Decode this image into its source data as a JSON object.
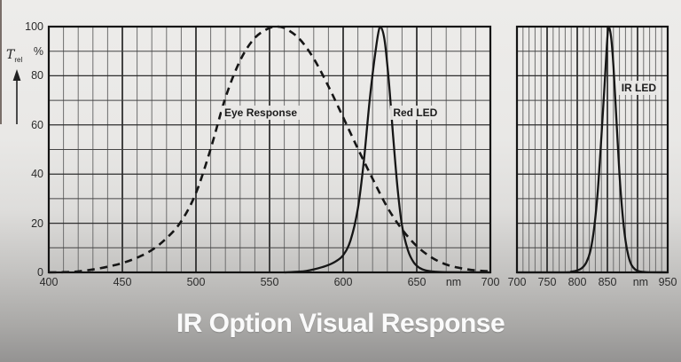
{
  "page": {
    "title": "IR Option Visual Response"
  },
  "axis": {
    "y_symbol": "T",
    "y_symbol_sub": "rel",
    "y_unit": "%",
    "x_unit": "nm"
  },
  "chart_data": [
    {
      "type": "line",
      "name": "visible-spectrum-panel",
      "xlabel": "nm",
      "ylabel": "T rel (%)",
      "xlim": [
        400,
        700
      ],
      "ylim": [
        0,
        100
      ],
      "x_minor_step": 10,
      "x_major_step": 50,
      "y_minor_step": 10,
      "y_major_step": 20,
      "grid": true,
      "x_tick_labels": [
        {
          "x": 400,
          "label": "400"
        },
        {
          "x": 450,
          "label": "450"
        },
        {
          "x": 500,
          "label": "500"
        },
        {
          "x": 550,
          "label": "550"
        },
        {
          "x": 600,
          "label": "600"
        },
        {
          "x": 650,
          "label": "650"
        },
        {
          "x": 675,
          "label": "nm"
        },
        {
          "x": 700,
          "label": "700"
        }
      ],
      "y_tick_labels": [
        {
          "v": 100,
          "label": "100"
        },
        {
          "v": 90,
          "label": "%"
        },
        {
          "v": 80,
          "label": "80"
        },
        {
          "v": 60,
          "label": "60"
        },
        {
          "v": 40,
          "label": "40"
        },
        {
          "v": 20,
          "label": "20"
        },
        {
          "v": 0,
          "label": "0"
        }
      ],
      "annotations": [
        {
          "label": "Eye Response",
          "x": 544,
          "y": 65
        },
        {
          "label": "Red LED",
          "x": 649,
          "y": 65
        }
      ],
      "series": [
        {
          "name": "Eye Response",
          "style": "dashed",
          "points": [
            [
              400,
              0
            ],
            [
              410,
              0.1
            ],
            [
              415,
              0.2
            ],
            [
              420,
              0.4
            ],
            [
              430,
              1.2
            ],
            [
              440,
              2.3
            ],
            [
              450,
              3.8
            ],
            [
              460,
              6
            ],
            [
              470,
              9.1
            ],
            [
              480,
              13.9
            ],
            [
              490,
              20.8
            ],
            [
              500,
              32.3
            ],
            [
              510,
              50.3
            ],
            [
              520,
              71
            ],
            [
              530,
              86.2
            ],
            [
              540,
              95.4
            ],
            [
              550,
              99.5
            ],
            [
              555,
              100
            ],
            [
              560,
              99.5
            ],
            [
              570,
              95.2
            ],
            [
              580,
              87
            ],
            [
              590,
              75.7
            ],
            [
              600,
              63.1
            ],
            [
              610,
              50.3
            ],
            [
              620,
              38.1
            ],
            [
              630,
              26.5
            ],
            [
              640,
              17.5
            ],
            [
              650,
              10.7
            ],
            [
              660,
              6.1
            ],
            [
              670,
              3.2
            ],
            [
              680,
              1.7
            ],
            [
              690,
              0.8
            ],
            [
              700,
              0.4
            ]
          ]
        },
        {
          "name": "Red LED",
          "style": "solid",
          "points": [
            [
              560,
              0
            ],
            [
              570,
              0.3
            ],
            [
              575,
              0.6
            ],
            [
              580,
              1.2
            ],
            [
              585,
              2
            ],
            [
              590,
              3
            ],
            [
              595,
              4.5
            ],
            [
              600,
              7
            ],
            [
              605,
              13
            ],
            [
              610,
              26
            ],
            [
              614,
              45
            ],
            [
              618,
              70
            ],
            [
              622,
              90
            ],
            [
              625,
              100
            ],
            [
              628,
              95
            ],
            [
              631,
              78
            ],
            [
              634,
              55
            ],
            [
              637,
              34
            ],
            [
              640,
              19
            ],
            [
              644,
              9
            ],
            [
              648,
              4
            ],
            [
              652,
              1.8
            ],
            [
              656,
              0.8
            ],
            [
              662,
              0.3
            ],
            [
              670,
              0.1
            ],
            [
              700,
              0
            ]
          ]
        }
      ]
    },
    {
      "type": "line",
      "name": "ir-spectrum-panel",
      "xlabel": "nm",
      "ylabel": "T rel (%)",
      "xlim": [
        700,
        950
      ],
      "ylim": [
        0,
        100
      ],
      "x_minor_step": 10,
      "x_major_step": 50,
      "y_minor_step": 10,
      "y_major_step": 20,
      "grid": true,
      "x_tick_labels": [
        {
          "x": 700,
          "label": "700"
        },
        {
          "x": 750,
          "label": "750"
        },
        {
          "x": 800,
          "label": "800"
        },
        {
          "x": 850,
          "label": "850"
        },
        {
          "x": 905,
          "label": "nm"
        },
        {
          "x": 950,
          "label": "950"
        }
      ],
      "y_tick_labels": [],
      "annotations": [
        {
          "label": "IR LED",
          "x": 902,
          "y": 75
        }
      ],
      "series": [
        {
          "name": "IR LED",
          "style": "solid",
          "points": [
            [
              700,
              0
            ],
            [
              780,
              0
            ],
            [
              790,
              0.3
            ],
            [
              800,
              0.8
            ],
            [
              808,
              1.8
            ],
            [
              815,
              4
            ],
            [
              822,
              9
            ],
            [
              828,
              18
            ],
            [
              834,
              33
            ],
            [
              840,
              55
            ],
            [
              845,
              75
            ],
            [
              849,
              92
            ],
            [
              852,
              100
            ],
            [
              856,
              96
            ],
            [
              860,
              84
            ],
            [
              865,
              62
            ],
            [
              870,
              40
            ],
            [
              875,
              24
            ],
            [
              880,
              13
            ],
            [
              885,
              6.5
            ],
            [
              890,
              3
            ],
            [
              896,
              1.2
            ],
            [
              903,
              0.4
            ],
            [
              915,
              0.1
            ],
            [
              950,
              0
            ]
          ]
        }
      ]
    }
  ]
}
